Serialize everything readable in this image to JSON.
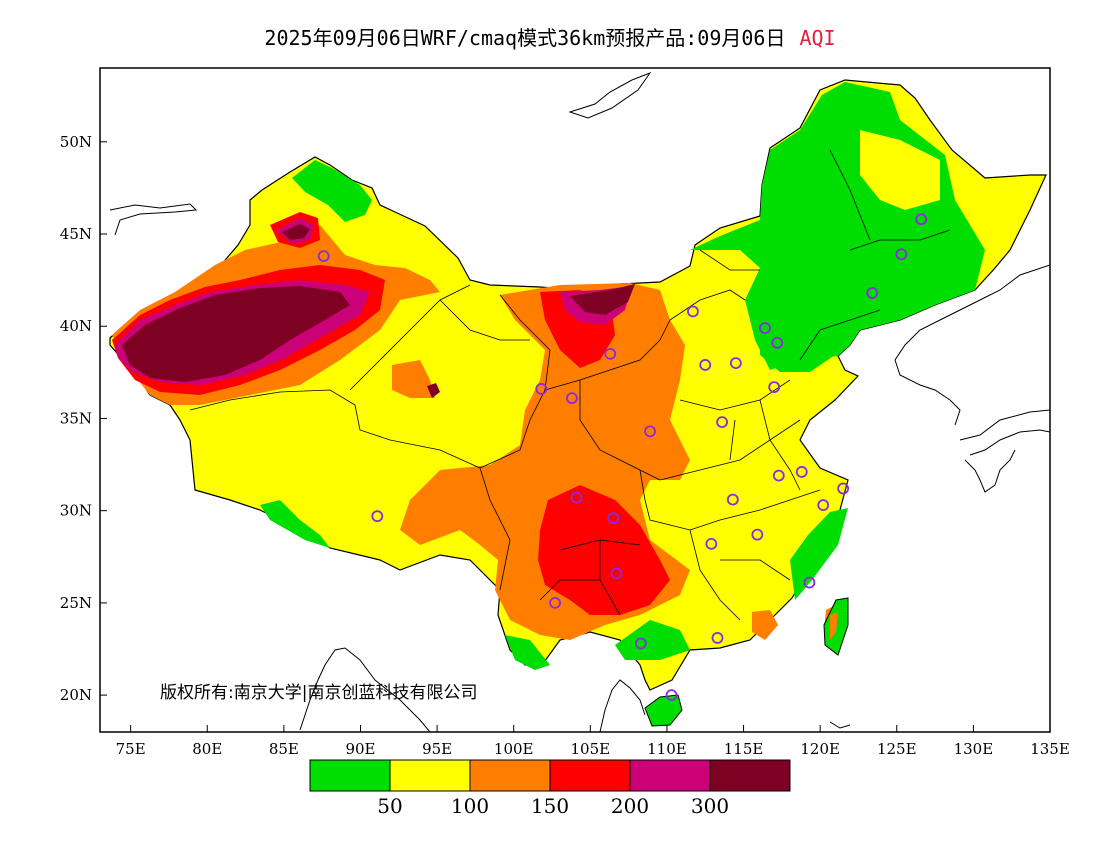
{
  "title": {
    "main": "2025年09月06日WRF/cmaq模式36km预报产品:09月06日",
    "variable": "AQI"
  },
  "map": {
    "lon_range": [
      73,
      135
    ],
    "lat_range": [
      18,
      54
    ],
    "x_ticks": [
      {
        "value": 75,
        "label": "75E"
      },
      {
        "value": 80,
        "label": "80E"
      },
      {
        "value": 85,
        "label": "85E"
      },
      {
        "value": 90,
        "label": "90E"
      },
      {
        "value": 95,
        "label": "95E"
      },
      {
        "value": 100,
        "label": "100E"
      },
      {
        "value": 105,
        "label": "105E"
      },
      {
        "value": 110,
        "label": "110E"
      },
      {
        "value": 115,
        "label": "115E"
      },
      {
        "value": 120,
        "label": "120E"
      },
      {
        "value": 125,
        "label": "125E"
      },
      {
        "value": 130,
        "label": "130E"
      },
      {
        "value": 135,
        "label": "135E"
      }
    ],
    "y_ticks": [
      {
        "value": 50,
        "label": "50N"
      },
      {
        "value": 45,
        "label": "45N"
      },
      {
        "value": 40,
        "label": "40N"
      },
      {
        "value": 35,
        "label": "35N"
      },
      {
        "value": 30,
        "label": "30N"
      },
      {
        "value": 25,
        "label": "25N"
      },
      {
        "value": 20,
        "label": "20N"
      }
    ],
    "copyright": "版权所有:南京大学|南京创蓝科技有限公司",
    "city_marker_color": "#8a2be2",
    "cities": [
      {
        "lon": 87.6,
        "lat": 43.8
      },
      {
        "lon": 91.1,
        "lat": 29.7
      },
      {
        "lon": 101.8,
        "lat": 36.6
      },
      {
        "lon": 103.8,
        "lat": 36.1
      },
      {
        "lon": 106.3,
        "lat": 38.5
      },
      {
        "lon": 111.7,
        "lat": 40.8
      },
      {
        "lon": 112.5,
        "lat": 37.9
      },
      {
        "lon": 114.5,
        "lat": 38.0
      },
      {
        "lon": 116.4,
        "lat": 39.9
      },
      {
        "lon": 117.2,
        "lat": 39.1
      },
      {
        "lon": 117.0,
        "lat": 36.7
      },
      {
        "lon": 113.6,
        "lat": 34.8
      },
      {
        "lon": 108.9,
        "lat": 34.3
      },
      {
        "lon": 104.1,
        "lat": 30.7
      },
      {
        "lon": 106.5,
        "lat": 29.6
      },
      {
        "lon": 106.7,
        "lat": 26.6
      },
      {
        "lon": 102.7,
        "lat": 25.0
      },
      {
        "lon": 108.3,
        "lat": 22.8
      },
      {
        "lon": 110.3,
        "lat": 20.0
      },
      {
        "lon": 113.3,
        "lat": 23.1
      },
      {
        "lon": 112.9,
        "lat": 28.2
      },
      {
        "lon": 114.3,
        "lat": 30.6
      },
      {
        "lon": 115.9,
        "lat": 28.7
      },
      {
        "lon": 117.3,
        "lat": 31.9
      },
      {
        "lon": 118.8,
        "lat": 32.1
      },
      {
        "lon": 120.2,
        "lat": 30.3
      },
      {
        "lon": 121.5,
        "lat": 31.2
      },
      {
        "lon": 119.3,
        "lat": 26.1
      },
      {
        "lon": 123.4,
        "lat": 41.8
      },
      {
        "lon": 125.3,
        "lat": 43.9
      },
      {
        "lon": 126.6,
        "lat": 45.8
      }
    ]
  },
  "legend": {
    "colors": [
      "#00dd00",
      "#ffff00",
      "#ff7e00",
      "#ff0000",
      "#cc0077",
      "#7e0023"
    ],
    "thresholds": [
      "50",
      "100",
      "150",
      "200",
      "300"
    ]
  }
}
